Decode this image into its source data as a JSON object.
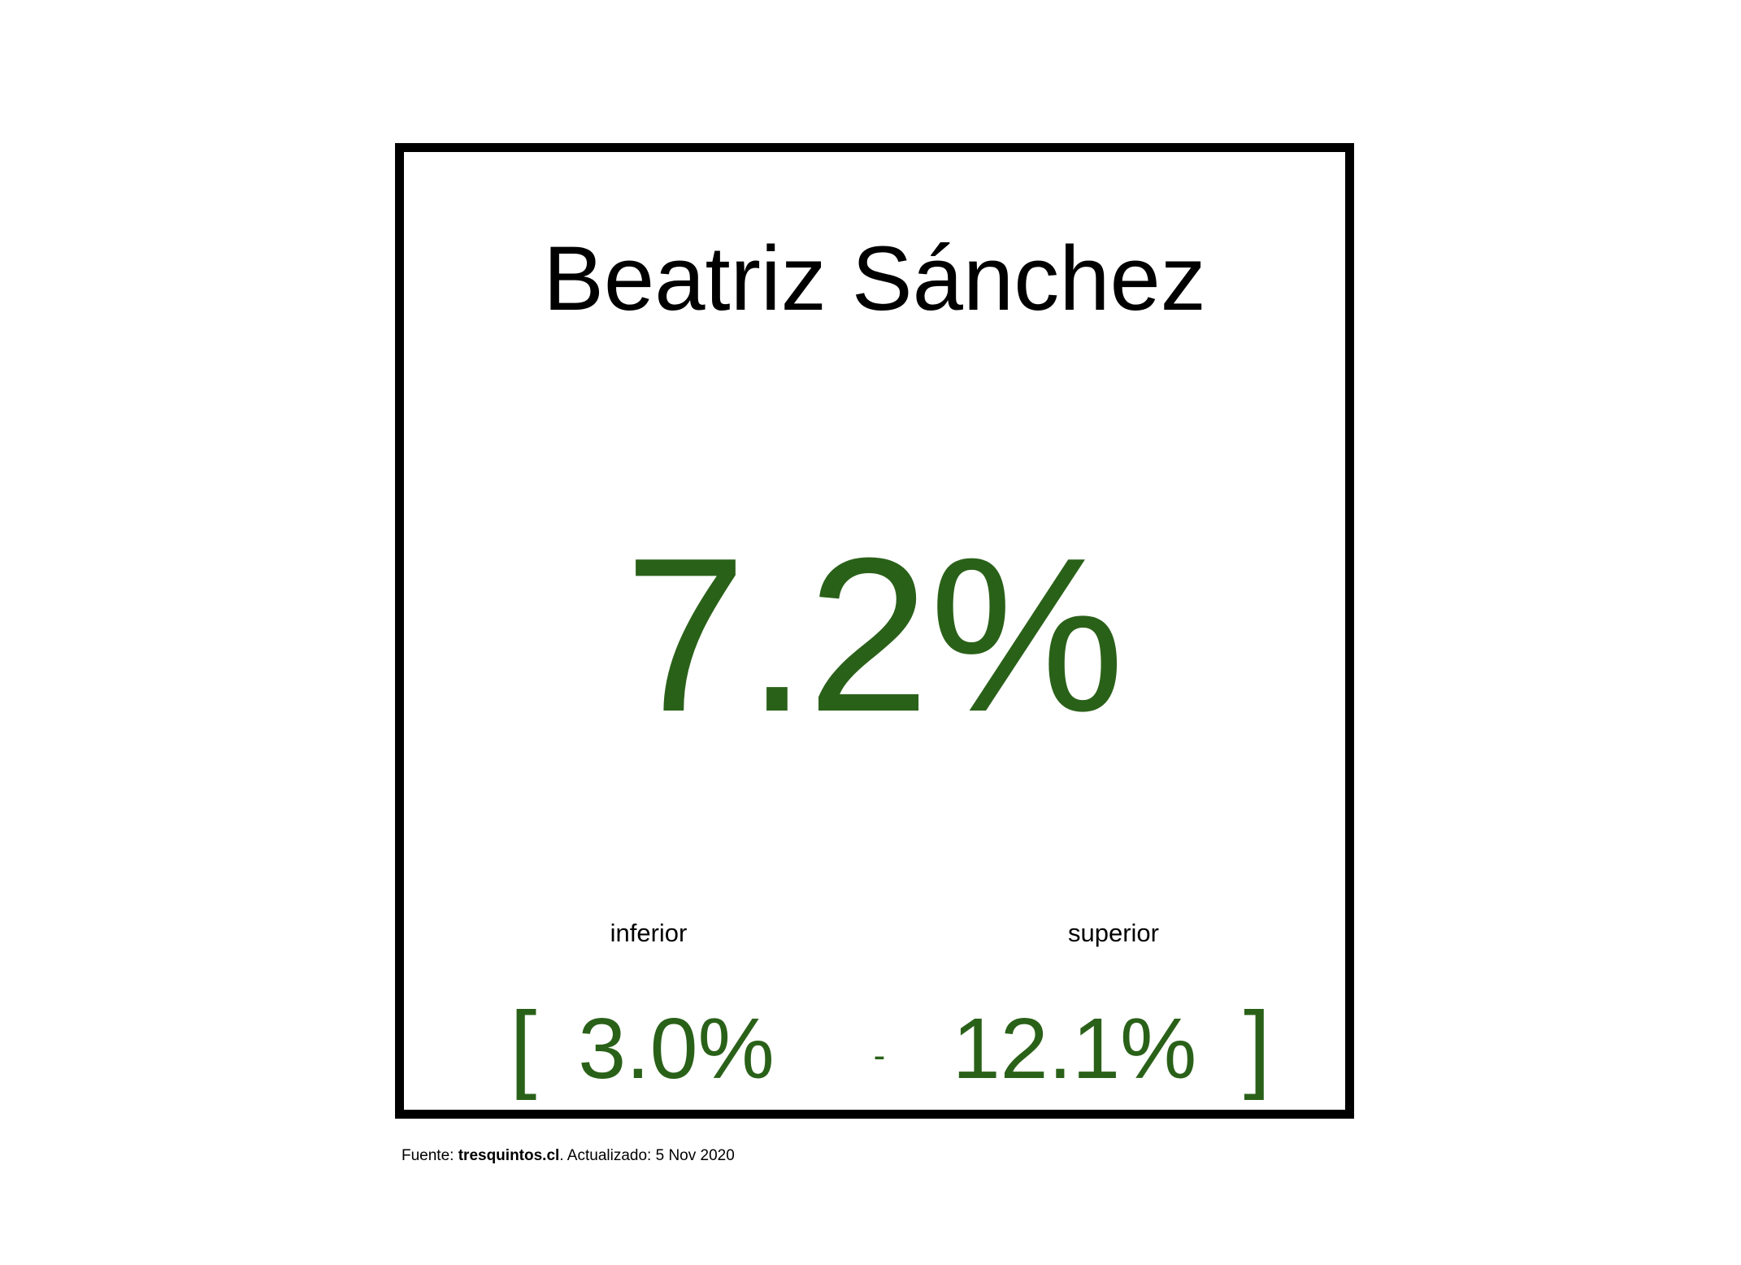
{
  "card": {
    "name": "Beatriz Sánchez",
    "estimate": "7.2%",
    "lower_label": "inferior",
    "upper_label": "superior",
    "bracket_open": "[",
    "lower_value": "3.0%",
    "separator": "-",
    "upper_value": "12.1%",
    "bracket_close": "]"
  },
  "footer": {
    "prefix": "Fuente: ",
    "source": "tresquintos.cl",
    "suffix": ". Actualizado: 5 Nov 2020"
  },
  "colors": {
    "value_green": "#2a6119",
    "border": "#000000",
    "text": "#000000",
    "background": "#ffffff"
  }
}
